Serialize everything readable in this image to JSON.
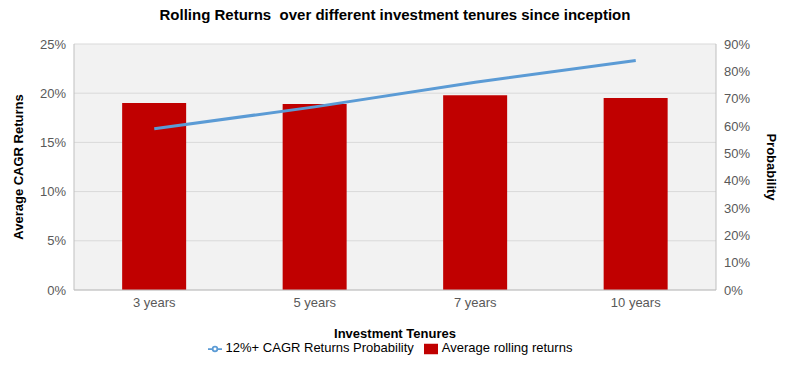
{
  "chart_data": {
    "type": "bar",
    "title": "Rolling Returns  over different investment tenures since inception",
    "x_label": "Investment Tenures",
    "y_label": "Average CAGR Returns",
    "y2_label": "Probability",
    "categories": [
      "3 years",
      "5 years",
      "7 years",
      "10 years"
    ],
    "series": [
      {
        "name": "Average rolling returns",
        "type": "bar",
        "color": "#C00000",
        "values": [
          19,
          18.9,
          19.8,
          19.5
        ]
      },
      {
        "name": "12%+ CAGR Returns Probability",
        "type": "line",
        "color": "#5B9BD5",
        "axis": "y2",
        "values": [
          59,
          67,
          76,
          84
        ]
      }
    ],
    "ylim": [
      0,
      25
    ],
    "yticks": [
      {
        "value": 0,
        "label": "0%"
      },
      {
        "value": 5,
        "label": "5%"
      },
      {
        "value": 10,
        "label": "10%"
      },
      {
        "value": 15,
        "label": "15%"
      },
      {
        "value": 20,
        "label": "20%"
      },
      {
        "value": 25,
        "label": "25%"
      }
    ],
    "y2lim": [
      0,
      90
    ],
    "y2ticks": [
      {
        "value": 0,
        "label": "0%"
      },
      {
        "value": 10,
        "label": "10%"
      },
      {
        "value": 20,
        "label": "20%"
      },
      {
        "value": 30,
        "label": "30%"
      },
      {
        "value": 40,
        "label": "40%"
      },
      {
        "value": 50,
        "label": "50%"
      },
      {
        "value": 60,
        "label": "60%"
      },
      {
        "value": 70,
        "label": "70%"
      },
      {
        "value": 80,
        "label": "80%"
      },
      {
        "value": 90,
        "label": "90%"
      }
    ],
    "grid": true,
    "legend": "bottom"
  }
}
